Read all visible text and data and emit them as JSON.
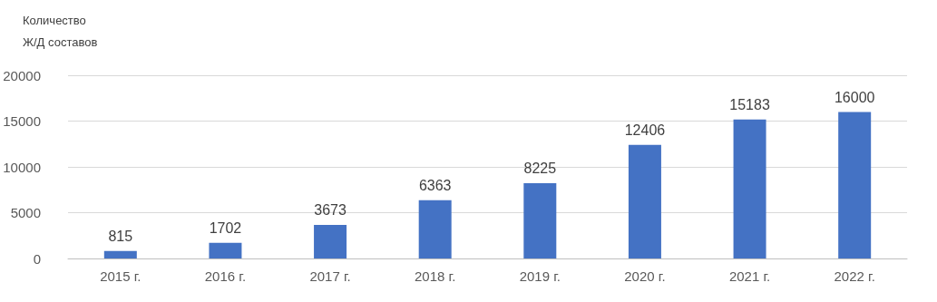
{
  "chart_data": {
    "type": "bar",
    "ylabel": "Количество Ж/Д составов",
    "categories": [
      "2015 г.",
      "2016 г.",
      "2017 г.",
      "2018 г.",
      "2019 г.",
      "2020 г.",
      "2021 г.",
      "2022 г."
    ],
    "values": [
      815,
      1702,
      3673,
      6363,
      8225,
      12406,
      15183,
      16000
    ],
    "color": "#4472c4",
    "ylim": [
      0,
      20000
    ],
    "yticks": [
      0,
      5000,
      10000,
      15000,
      20000
    ],
    "grid": "y",
    "data_labels": true
  }
}
